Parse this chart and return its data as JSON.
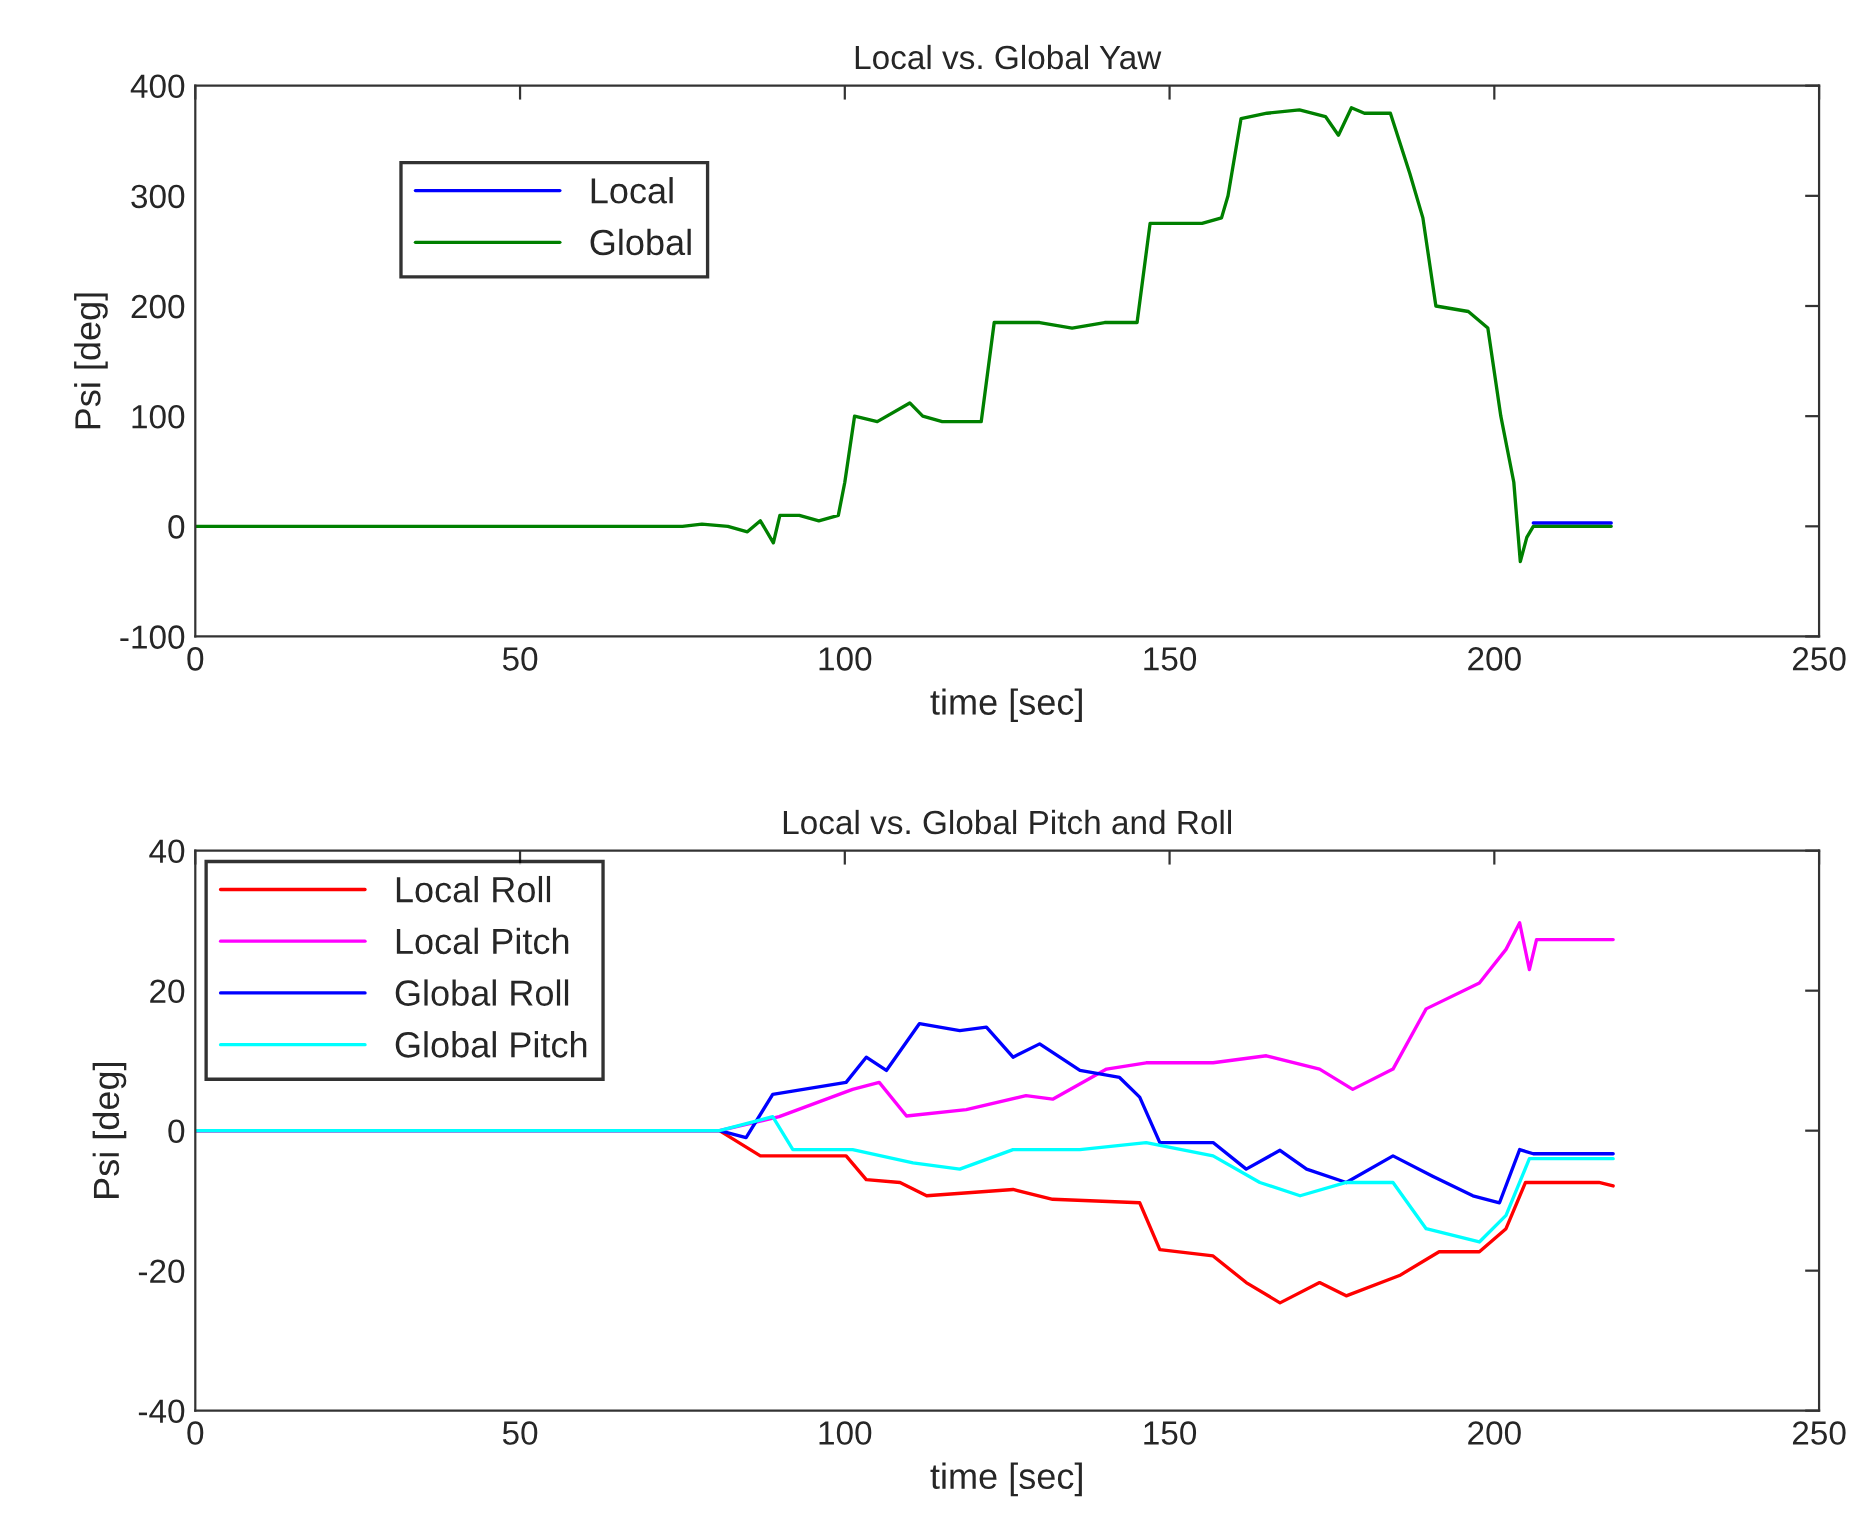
{
  "chart_data": [
    {
      "type": "line",
      "title": "Local vs. Global Yaw",
      "xlabel": "time [sec]",
      "ylabel": "Psi [deg]",
      "xlim": [
        0,
        250
      ],
      "xticks": [
        0,
        50,
        100,
        150,
        200,
        250
      ],
      "ylim": [
        -100,
        400
      ],
      "yticks": [
        -100,
        0,
        100,
        200,
        300,
        400
      ],
      "grid": false,
      "legend": "top left",
      "series": [
        {
          "name": "Local",
          "color": "#0000ff",
          "x": [
            206,
            218
          ],
          "values": [
            3,
            3
          ]
        },
        {
          "name": "Global",
          "color": "#008000",
          "x": [
            0,
            75,
            78,
            82,
            85,
            87,
            89,
            90,
            93,
            96,
            99,
            100,
            101.5,
            105,
            110,
            112,
            115,
            121,
            123,
            130,
            135,
            140,
            145,
            147,
            152,
            155,
            158,
            159,
            161,
            165,
            170,
            174,
            176,
            178,
            180,
            184,
            187,
            189,
            191,
            196,
            199,
            201,
            203,
            204,
            205,
            206,
            218
          ],
          "values": [
            0,
            0,
            2,
            0,
            -5,
            5,
            -15,
            10,
            10,
            5,
            10,
            40,
            100,
            95,
            112,
            100,
            95,
            95,
            185,
            185,
            180,
            185,
            185,
            275,
            275,
            275,
            280,
            300,
            370,
            375,
            378,
            372,
            355,
            380,
            375,
            375,
            320,
            280,
            200,
            195,
            180,
            100,
            40,
            -32,
            -10,
            0,
            0
          ]
        }
      ]
    },
    {
      "type": "line",
      "title": "Local vs. Global Pitch and Roll",
      "xlabel": "time [sec]",
      "ylabel": "Psi [deg]",
      "xlim": [
        0,
        250
      ],
      "xticks": [
        0,
        50,
        100,
        150,
        200,
        250
      ],
      "ylim": [
        -40,
        40
      ],
      "yticks": [
        -40,
        -20,
        0,
        20,
        40
      ],
      "grid": false,
      "legend": "top left",
      "series": [
        {
          "name": "Local Roll",
          "color": "#ff0000",
          "x": [
            0,
            80.7,
            87,
            100.2,
            103.3,
            108.5,
            112.6,
            125.9,
            132,
            145.4,
            148.5,
            156.7,
            161.8,
            167,
            173.1,
            177.2,
            185.4,
            191.5,
            197.7,
            201.8,
            204.8,
            216.1,
            218.3
          ],
          "values": [
            0,
            0,
            -3.6,
            -3.6,
            -7,
            -7.4,
            -9.3,
            -8.4,
            -9.8,
            -10.3,
            -17,
            -17.9,
            -21.7,
            -24.6,
            -21.7,
            -23.6,
            -20.7,
            -17.3,
            -17.3,
            -14,
            -7.4,
            -7.4,
            -7.9
          ]
        },
        {
          "name": "Local Pitch",
          "color": "#ff00ff",
          "x": [
            0,
            80.7,
            89.9,
            101.2,
            105.3,
            109.5,
            118.7,
            127.9,
            132,
            140.3,
            146.4,
            156.7,
            164.9,
            173.1,
            178.2,
            184.4,
            189.5,
            197.7,
            201.8,
            203.9,
            205.4,
            206.5,
            218.3
          ],
          "values": [
            0,
            0,
            2,
            5.9,
            6.9,
            2.1,
            3,
            5,
            4.5,
            8.8,
            9.7,
            9.7,
            10.7,
            8.8,
            5.9,
            8.8,
            17.4,
            21.1,
            25.9,
            29.7,
            23,
            27.3,
            27.3
          ]
        },
        {
          "name": "Global Roll",
          "color": "#0000ff",
          "x": [
            0,
            80.7,
            84.8,
            88.9,
            100.2,
            103.3,
            106.4,
            111.5,
            117.7,
            121.8,
            125.9,
            130,
            136.2,
            142.3,
            145.4,
            148.5,
            156.7,
            161.8,
            167,
            171.1,
            177.2,
            184.4,
            190.5,
            196.7,
            200.8,
            203.9,
            206,
            218.3
          ],
          "values": [
            0,
            0,
            -1,
            5.2,
            6.9,
            10.5,
            8.6,
            15.3,
            14.3,
            14.8,
            10.5,
            12.4,
            8.6,
            7.6,
            4.8,
            -1.7,
            -1.7,
            -5.5,
            -2.8,
            -5.5,
            -7.4,
            -3.6,
            -6.5,
            -9.3,
            -10.3,
            -2.7,
            -3.3,
            -3.3
          ]
        },
        {
          "name": "Global Pitch",
          "color": "#00ffff",
          "x": [
            0,
            80.7,
            88.9,
            92,
            101.2,
            110.5,
            117.7,
            125.9,
            136.2,
            146.4,
            156.7,
            163.9,
            170.1,
            177.2,
            184.4,
            189.5,
            197.7,
            201.8,
            205.4,
            218.3
          ],
          "values": [
            0,
            0,
            2,
            -2.7,
            -2.7,
            -4.6,
            -5.5,
            -2.7,
            -2.7,
            -1.7,
            -3.6,
            -7.4,
            -9.3,
            -7.4,
            -7.4,
            -14,
            -15.9,
            -12.1,
            -4,
            -4
          ]
        }
      ]
    }
  ]
}
